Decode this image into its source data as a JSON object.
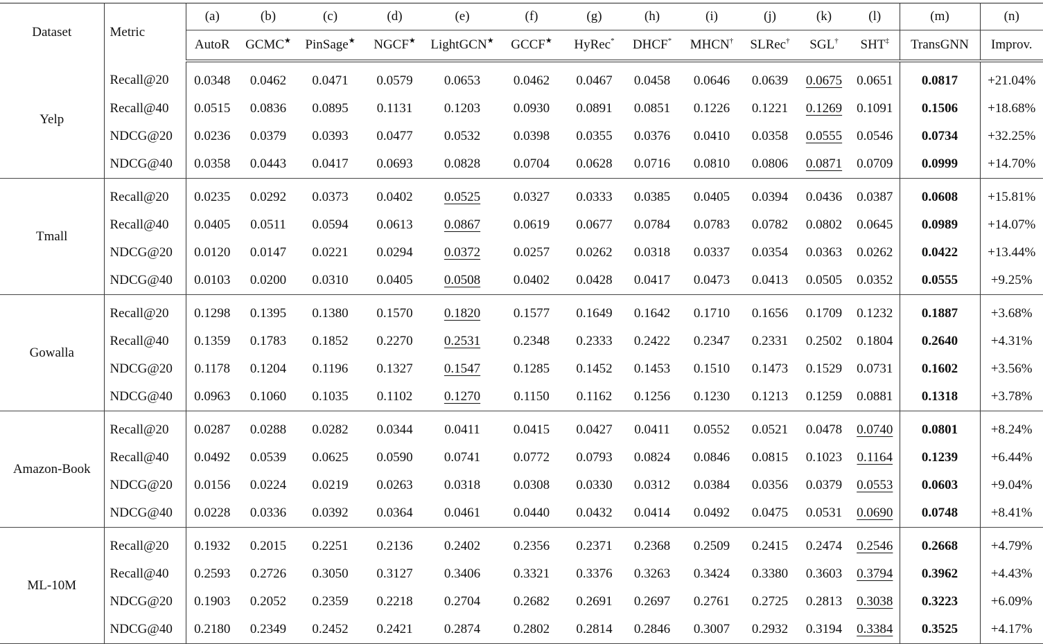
{
  "header": {
    "dataset_label": "Dataset",
    "metric_label": "Metric",
    "columns": [
      {
        "letter": "(a)",
        "name": "AutoR",
        "mark": ""
      },
      {
        "letter": "(b)",
        "name": "GCMC",
        "mark": "★"
      },
      {
        "letter": "(c)",
        "name": "PinSage",
        "mark": "★"
      },
      {
        "letter": "(d)",
        "name": "NGCF",
        "mark": "★"
      },
      {
        "letter": "(e)",
        "name": "LightGCN",
        "mark": "★"
      },
      {
        "letter": "(f)",
        "name": "GCCF",
        "mark": "★"
      },
      {
        "letter": "(g)",
        "name": "HyRec",
        "mark": "*"
      },
      {
        "letter": "(h)",
        "name": "DHCF",
        "mark": "*"
      },
      {
        "letter": "(i)",
        "name": "MHCN",
        "mark": "†"
      },
      {
        "letter": "(j)",
        "name": "SLRec",
        "mark": "†"
      },
      {
        "letter": "(k)",
        "name": "SGL",
        "mark": "†"
      },
      {
        "letter": "(l)",
        "name": "SHT",
        "mark": "‡"
      },
      {
        "letter": "(m)",
        "name": "TransGNN",
        "mark": ""
      },
      {
        "letter": "(n)",
        "name": "Improv.",
        "mark": ""
      }
    ]
  },
  "groups": [
    {
      "dataset": "Yelp",
      "second_best_column": "(k)",
      "rows": [
        {
          "metric": "Recall@20",
          "values": [
            "0.0348",
            "0.0462",
            "0.0471",
            "0.0579",
            "0.0653",
            "0.0462",
            "0.0467",
            "0.0458",
            "0.0646",
            "0.0639",
            "0.0675",
            "0.0651",
            "0.0817",
            "+21.04%"
          ]
        },
        {
          "metric": "Recall@40",
          "values": [
            "0.0515",
            "0.0836",
            "0.0895",
            "0.1131",
            "0.1203",
            "0.0930",
            "0.0891",
            "0.0851",
            "0.1226",
            "0.1221",
            "0.1269",
            "0.1091",
            "0.1506",
            "+18.68%"
          ]
        },
        {
          "metric": "NDCG@20",
          "values": [
            "0.0236",
            "0.0379",
            "0.0393",
            "0.0477",
            "0.0532",
            "0.0398",
            "0.0355",
            "0.0376",
            "0.0410",
            "0.0358",
            "0.0555",
            "0.0546",
            "0.0734",
            "+32.25%"
          ]
        },
        {
          "metric": "NDCG@40",
          "values": [
            "0.0358",
            "0.0443",
            "0.0417",
            "0.0693",
            "0.0828",
            "0.0704",
            "0.0628",
            "0.0716",
            "0.0810",
            "0.0806",
            "0.0871",
            "0.0709",
            "0.0999",
            "+14.70%"
          ]
        }
      ]
    },
    {
      "dataset": "Tmall",
      "second_best_column": "(e)",
      "rows": [
        {
          "metric": "Recall@20",
          "values": [
            "0.0235",
            "0.0292",
            "0.0373",
            "0.0402",
            "0.0525",
            "0.0327",
            "0.0333",
            "0.0385",
            "0.0405",
            "0.0394",
            "0.0436",
            "0.0387",
            "0.0608",
            "+15.81%"
          ]
        },
        {
          "metric": "Recall@40",
          "values": [
            "0.0405",
            "0.0511",
            "0.0594",
            "0.0613",
            "0.0867",
            "0.0619",
            "0.0677",
            "0.0784",
            "0.0783",
            "0.0782",
            "0.0802",
            "0.0645",
            "0.0989",
            "+14.07%"
          ]
        },
        {
          "metric": "NDCG@20",
          "values": [
            "0.0120",
            "0.0147",
            "0.0221",
            "0.0294",
            "0.0372",
            "0.0257",
            "0.0262",
            "0.0318",
            "0.0337",
            "0.0354",
            "0.0363",
            "0.0262",
            "0.0422",
            "+13.44%"
          ]
        },
        {
          "metric": "NDCG@40",
          "values": [
            "0.0103",
            "0.0200",
            "0.0310",
            "0.0405",
            "0.0508",
            "0.0402",
            "0.0428",
            "0.0417",
            "0.0473",
            "0.0413",
            "0.0505",
            "0.0352",
            "0.0555",
            "+9.25%"
          ]
        }
      ]
    },
    {
      "dataset": "Gowalla",
      "second_best_column": "(e)",
      "rows": [
        {
          "metric": "Recall@20",
          "values": [
            "0.1298",
            "0.1395",
            "0.1380",
            "0.1570",
            "0.1820",
            "0.1577",
            "0.1649",
            "0.1642",
            "0.1710",
            "0.1656",
            "0.1709",
            "0.1232",
            "0.1887",
            "+3.68%"
          ]
        },
        {
          "metric": "Recall@40",
          "values": [
            "0.1359",
            "0.1783",
            "0.1852",
            "0.2270",
            "0.2531",
            "0.2348",
            "0.2333",
            "0.2422",
            "0.2347",
            "0.2331",
            "0.2502",
            "0.1804",
            "0.2640",
            "+4.31%"
          ]
        },
        {
          "metric": "NDCG@20",
          "values": [
            "0.1178",
            "0.1204",
            "0.1196",
            "0.1327",
            "0.1547",
            "0.1285",
            "0.1452",
            "0.1453",
            "0.1510",
            "0.1473",
            "0.1529",
            "0.0731",
            "0.1602",
            "+3.56%"
          ]
        },
        {
          "metric": "NDCG@40",
          "values": [
            "0.0963",
            "0.1060",
            "0.1035",
            "0.1102",
            "0.1270",
            "0.1150",
            "0.1162",
            "0.1256",
            "0.1230",
            "0.1213",
            "0.1259",
            "0.0881",
            "0.1318",
            "+3.78%"
          ]
        }
      ]
    },
    {
      "dataset": "Amazon-Book",
      "second_best_column": "(l)",
      "rows": [
        {
          "metric": "Recall@20",
          "values": [
            "0.0287",
            "0.0288",
            "0.0282",
            "0.0344",
            "0.0411",
            "0.0415",
            "0.0427",
            "0.0411",
            "0.0552",
            "0.0521",
            "0.0478",
            "0.0740",
            "0.0801",
            "+8.24%"
          ]
        },
        {
          "metric": "Recall@40",
          "values": [
            "0.0492",
            "0.0539",
            "0.0625",
            "0.0590",
            "0.0741",
            "0.0772",
            "0.0793",
            "0.0824",
            "0.0846",
            "0.0815",
            "0.1023",
            "0.1164",
            "0.1239",
            "+6.44%"
          ]
        },
        {
          "metric": "NDCG@20",
          "values": [
            "0.0156",
            "0.0224",
            "0.0219",
            "0.0263",
            "0.0318",
            "0.0308",
            "0.0330",
            "0.0312",
            "0.0384",
            "0.0356",
            "0.0379",
            "0.0553",
            "0.0603",
            "+9.04%"
          ]
        },
        {
          "metric": "NDCG@40",
          "values": [
            "0.0228",
            "0.0336",
            "0.0392",
            "0.0364",
            "0.0461",
            "0.0440",
            "0.0432",
            "0.0414",
            "0.0492",
            "0.0475",
            "0.0531",
            "0.0690",
            "0.0748",
            "+8.41%"
          ]
        }
      ]
    },
    {
      "dataset": "ML-10M",
      "second_best_column": "(l)",
      "rows": [
        {
          "metric": "Recall@20",
          "values": [
            "0.1932",
            "0.2015",
            "0.2251",
            "0.2136",
            "0.2402",
            "0.2356",
            "0.2371",
            "0.2368",
            "0.2509",
            "0.2415",
            "0.2474",
            "0.2546",
            "0.2668",
            "+4.79%"
          ]
        },
        {
          "metric": "Recall@40",
          "values": [
            "0.2593",
            "0.2726",
            "0.3050",
            "0.3127",
            "0.3406",
            "0.3321",
            "0.3376",
            "0.3263",
            "0.3424",
            "0.3380",
            "0.3603",
            "0.3794",
            "0.3962",
            "+4.43%"
          ]
        },
        {
          "metric": "NDCG@20",
          "values": [
            "0.1903",
            "0.2052",
            "0.2359",
            "0.2218",
            "0.2704",
            "0.2682",
            "0.2691",
            "0.2697",
            "0.2761",
            "0.2725",
            "0.2813",
            "0.3038",
            "0.3223",
            "+6.09%"
          ]
        },
        {
          "metric": "NDCG@40",
          "values": [
            "0.2180",
            "0.2349",
            "0.2452",
            "0.2421",
            "0.2874",
            "0.2802",
            "0.2814",
            "0.2846",
            "0.3007",
            "0.2932",
            "0.3194",
            "0.3384",
            "0.3525",
            "+4.17%"
          ]
        }
      ]
    }
  ],
  "best_column": "(m)"
}
